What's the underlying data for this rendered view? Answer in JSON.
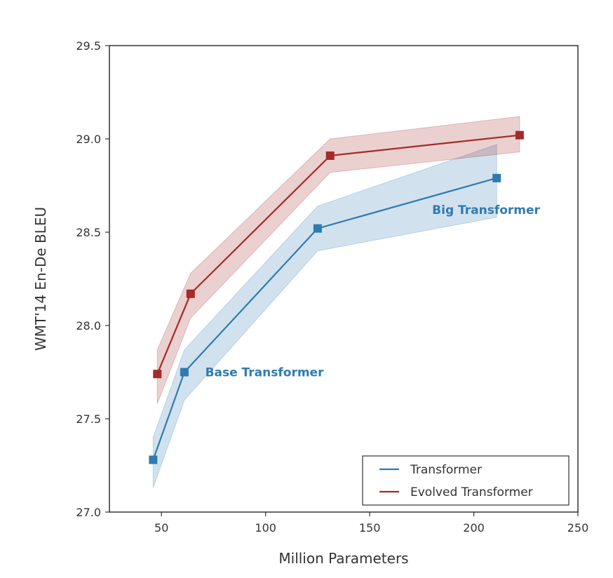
{
  "chart_data": {
    "type": "line",
    "title": "",
    "xlabel": "Million Parameters",
    "ylabel": "WMT'14 En-De BLEU",
    "xlim": [
      25,
      250
    ],
    "ylim": [
      27.0,
      29.5
    ],
    "xticks": [
      50,
      100,
      150,
      200,
      250
    ],
    "yticks": [
      27.0,
      27.5,
      28.0,
      28.5,
      29.0,
      29.5
    ],
    "xtick_labels": [
      "50",
      "100",
      "150",
      "200",
      "250"
    ],
    "ytick_labels": [
      "27.0",
      "27.5",
      "28.0",
      "28.5",
      "29.0",
      "29.5"
    ],
    "grid": false,
    "legend_position": "lower-right",
    "series": [
      {
        "name": "Transformer",
        "color": "#2f7bb0",
        "marker": "square",
        "x": [
          46,
          61,
          125,
          211
        ],
        "y": [
          27.28,
          27.75,
          28.52,
          28.79
        ],
        "lower": [
          27.13,
          27.6,
          28.4,
          28.58
        ],
        "upper": [
          27.4,
          27.87,
          28.64,
          28.97
        ]
      },
      {
        "name": "Evolved Transformer",
        "color": "#a52a2a",
        "marker": "square",
        "x": [
          48,
          64,
          131,
          222
        ],
        "y": [
          27.74,
          28.17,
          28.91,
          29.02
        ],
        "lower": [
          27.58,
          28.04,
          28.82,
          28.93
        ],
        "upper": [
          27.87,
          28.28,
          29.0,
          29.12
        ]
      }
    ],
    "annotations": [
      {
        "text": "Base Transformer",
        "x": 71,
        "y": 27.75,
        "color": "#2f7bb0"
      },
      {
        "text": "Big Transformer",
        "x": 180,
        "y": 28.62,
        "color": "#2f7bb0"
      }
    ]
  }
}
